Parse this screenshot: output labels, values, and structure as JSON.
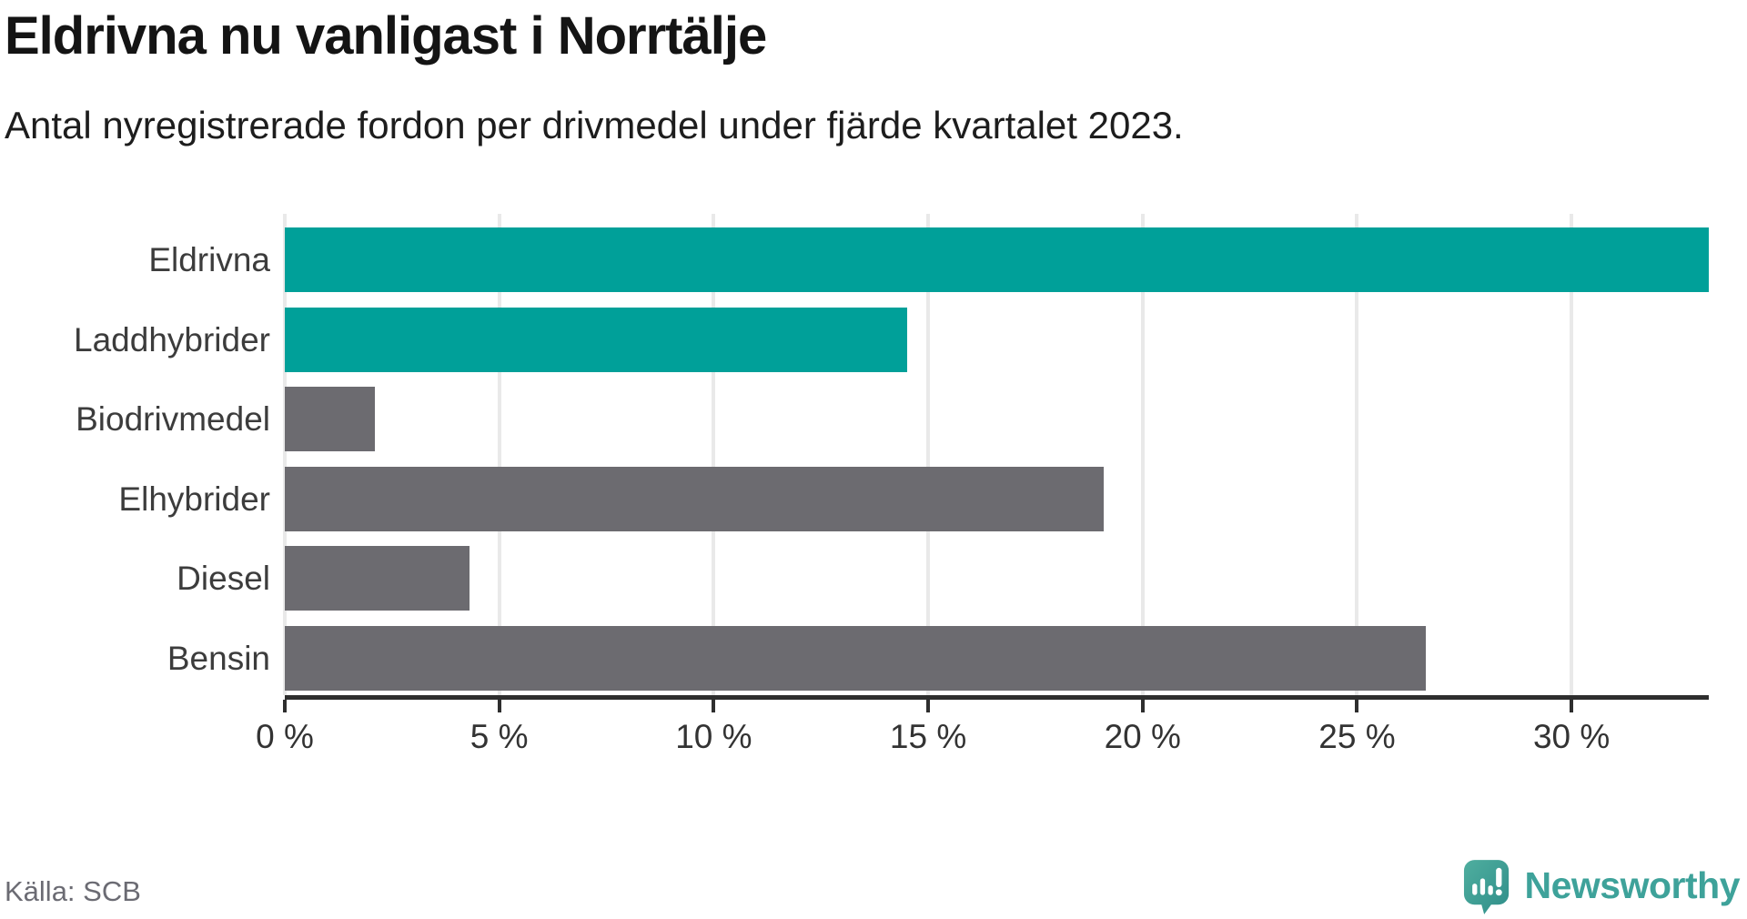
{
  "chart_data": {
    "type": "bar",
    "orientation": "horizontal",
    "title": "Eldrivna nu vanligast i Norrtälje",
    "subtitle": "Antal nyregistrerade fordon per drivmedel under fjärde kvartalet 2023.",
    "categories": [
      "Eldrivna",
      "Laddhybrider",
      "Biodrivmedel",
      "Elhybrider",
      "Diesel",
      "Bensin"
    ],
    "values": [
      33.2,
      14.5,
      2.1,
      19.1,
      4.3,
      26.6
    ],
    "unit": "%",
    "bar_colors": [
      "#00a099",
      "#00a099",
      "#6c6b70",
      "#6c6b70",
      "#6c6b70",
      "#6c6b70"
    ],
    "highlight_color": "#00a099",
    "default_color": "#6c6b70",
    "xlim": [
      0,
      33.2
    ],
    "x_ticks": [
      0,
      5,
      10,
      15,
      20,
      25,
      30
    ],
    "x_tick_labels": [
      "0 %",
      "5 %",
      "10 %",
      "15 %",
      "20 %",
      "25 %",
      "30 %"
    ],
    "grid": true,
    "legend": false,
    "xlabel": "",
    "ylabel": ""
  },
  "footer": {
    "source": "Källa: SCB",
    "brand": "Newsworthy",
    "brand_color": "#3ea29a"
  }
}
